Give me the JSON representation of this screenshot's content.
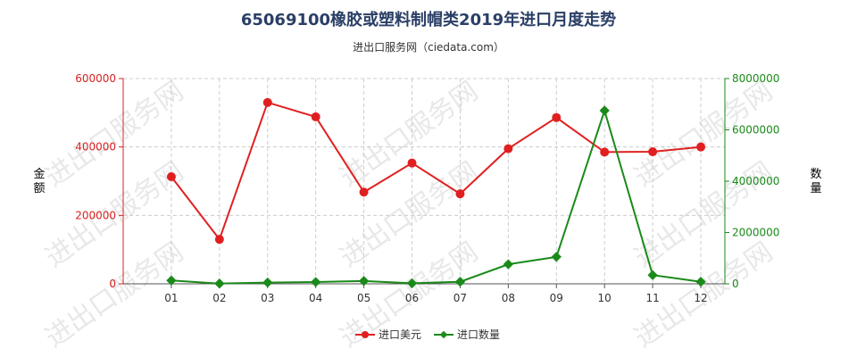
{
  "chart_data": {
    "type": "line",
    "title": "65069100橡胶或塑料制帽类2019年进口月度走势",
    "subtitle": "进出口服务网（ciedata.com）",
    "watermark": "进出口服务网",
    "categories": [
      "01",
      "02",
      "03",
      "04",
      "05",
      "06",
      "07",
      "08",
      "09",
      "10",
      "11",
      "12"
    ],
    "left_axis": {
      "label": "金额",
      "range": [
        0,
        600000
      ],
      "ticks": [
        0,
        200000,
        400000,
        600000
      ],
      "tick_labels": [
        "0",
        "200000",
        "400000",
        "600000"
      ],
      "color": "#d92121"
    },
    "right_axis": {
      "label": "数量",
      "range": [
        0,
        8000000
      ],
      "ticks": [
        0,
        2000000,
        4000000,
        6000000,
        8000000
      ],
      "tick_labels": [
        "0",
        "2000000",
        "4000000",
        "6000000",
        "8000000"
      ],
      "color": "#1a8a1a"
    },
    "series": [
      {
        "name": "进口美元",
        "axis": "left",
        "color": "#e02020",
        "values": [
          313000,
          130000,
          530000,
          488000,
          268000,
          353000,
          263000,
          395000,
          486000,
          385000,
          386000,
          400000
        ]
      },
      {
        "name": "进口数量",
        "axis": "right",
        "color": "#1a8a1a",
        "values": [
          130000,
          10000,
          50000,
          70000,
          110000,
          20000,
          80000,
          760000,
          1050000,
          6750000,
          340000,
          80000
        ]
      }
    ],
    "grid": true,
    "legend_position": "bottom-center"
  }
}
